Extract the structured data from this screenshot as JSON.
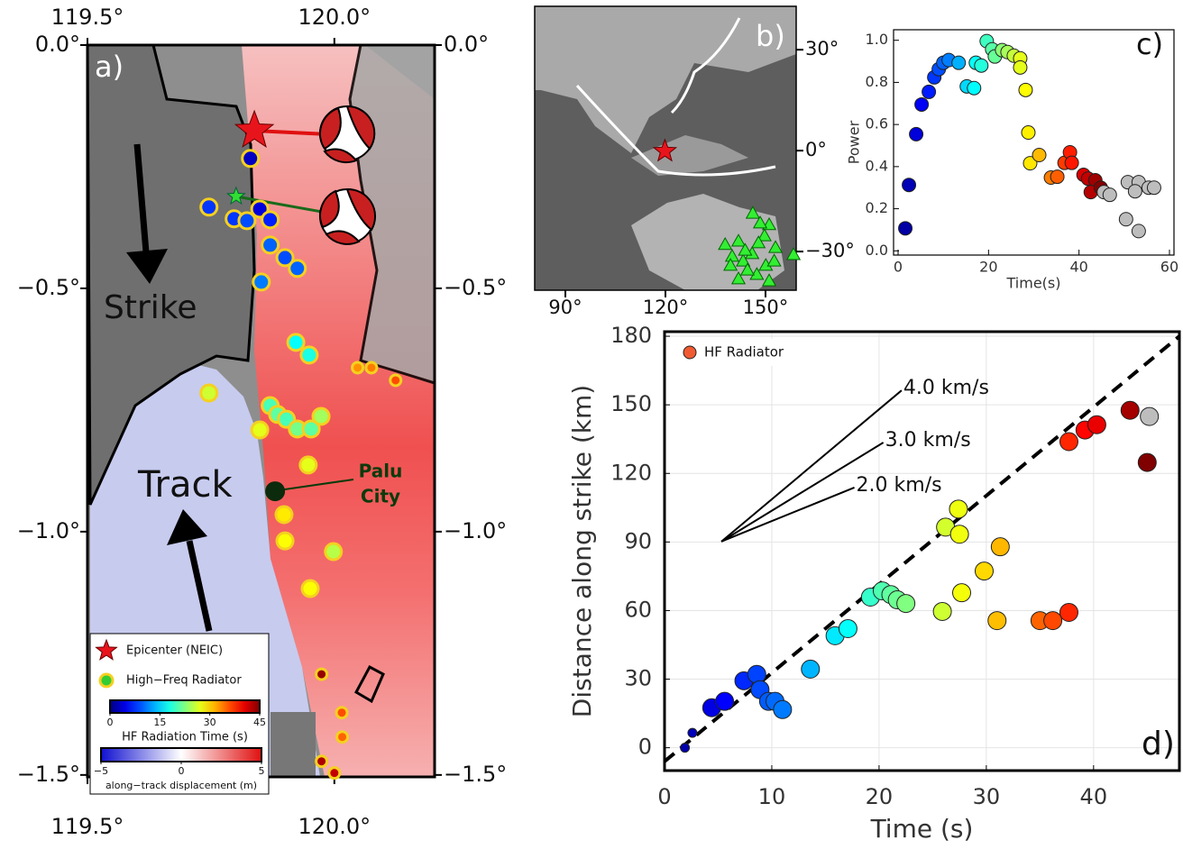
{
  "chart_data": [
    {
      "type": "map",
      "panel_label": "a)",
      "xlim": [
        119.5,
        120.203
      ],
      "ylim": [
        -1.504,
        0
      ],
      "xticks": [
        {
          "value": 119.5,
          "label": "119.5°"
        },
        {
          "value": 120.0,
          "label": "120.0°"
        }
      ],
      "yticks": [
        {
          "value": 0,
          "label": "0.0°"
        },
        {
          "value": -0.5,
          "label": "−0.5°"
        },
        {
          "value": -1.0,
          "label": "−1.0°"
        },
        {
          "value": -1.5,
          "label": "−1.5°"
        }
      ],
      "annotations": {
        "strike": "Strike",
        "track": "Track"
      },
      "city": {
        "label": [
          "Palu",
          "City"
        ],
        "x": 119.88,
        "y": -0.917
      },
      "epicenter": {
        "name": "Epicenter (NEIC)",
        "x": 119.838,
        "y": -0.176,
        "color": "#e8141c"
      },
      "second_star": {
        "x": 119.801,
        "y": -0.311,
        "color": "#33dd33"
      },
      "series": [
        {
          "name": "High−Freq Radiator",
          "x": [
            119.83,
            119.746,
            119.797,
            119.823,
            119.849,
            119.87,
            119.87,
            119.9,
            119.925,
            119.852,
            119.922,
            119.949,
            119.746,
            119.87,
            119.885,
            119.903,
            119.925,
            119.953,
            119.973,
            119.849,
            119.947,
            119.898,
            119.9,
            119.998,
            119.951,
            120.047,
            120.075,
            120.124,
            119.974,
            120.015,
            120.016,
            119.974,
            120.0
          ],
          "y": [
            -0.233,
            -0.333,
            -0.357,
            -0.361,
            -0.337,
            -0.359,
            -0.411,
            -0.437,
            -0.459,
            -0.487,
            -0.611,
            -0.637,
            -0.715,
            -0.741,
            -0.759,
            -0.769,
            -0.789,
            -0.789,
            -0.763,
            -0.791,
            -0.863,
            -0.965,
            -1.019,
            -1.041,
            -1.117,
            -0.663,
            -0.663,
            -0.689,
            -1.293,
            -1.372,
            -1.422,
            -1.472,
            -1.496
          ],
          "values": [
            3,
            8,
            8,
            9,
            4,
            7,
            10,
            9,
            10,
            11,
            17,
            18,
            26,
            20,
            21,
            20,
            22,
            21,
            24,
            27,
            27,
            29,
            28,
            25,
            28,
            33,
            34,
            36,
            44,
            36,
            35,
            43,
            42
          ]
        }
      ],
      "colorbars": [
        {
          "label": "HF Radiation Time (s)",
          "lim": [
            0,
            45
          ],
          "ticks": [
            0,
            15,
            30,
            45
          ]
        },
        {
          "label": "along−track displacement (m)",
          "lim": [
            -5,
            5
          ],
          "ticks": [
            {
              "value": -5,
              "label": "−5"
            },
            0,
            5
          ]
        }
      ]
    },
    {
      "type": "map",
      "panel_label": "b)",
      "xlim": [
        80.8,
        159.2
      ],
      "ylim": [
        -41.5,
        42.9
      ],
      "xticks": [
        {
          "value": 90,
          "label": "90°"
        },
        {
          "value": 120,
          "label": "120°"
        },
        {
          "value": 150,
          "label": "150°"
        }
      ],
      "yticks": [
        {
          "value": 30,
          "label": "30°"
        },
        {
          "value": 0,
          "label": "0°"
        },
        {
          "value": -30,
          "label": "−30°"
        }
      ],
      "epicenter": {
        "x": 119.84,
        "y": -0.18,
        "color": "#e8141c"
      },
      "stations": {
        "color": "#33ee33",
        "x": [
          146.2,
          151.1,
          149.7,
          153.0,
          141.9,
          137.9,
          140.0,
          143.3,
          146.0,
          150.1,
          147.4,
          144.6,
          141.9,
          151.1,
          147.9,
          152.6,
          158.4,
          143.9,
          148.4,
          139.5
        ],
        "y": [
          -18.8,
          -22.2,
          -25.5,
          -29.0,
          -27.1,
          -28.1,
          -31.6,
          -33.0,
          -30.8,
          -34.3,
          -37.0,
          -35.7,
          -38.3,
          -38.9,
          -27.6,
          -33.0,
          -31.1,
          -29.8,
          -21.7,
          -34.3
        ]
      }
    },
    {
      "type": "scatter",
      "panel_label": "c)",
      "xlabel": "Time(s)",
      "ylabel": "Power",
      "xlim": [
        -1,
        61
      ],
      "ylim": [
        -0.02,
        1.05
      ],
      "xticks": [
        0,
        20,
        40,
        60
      ],
      "yticks": [
        {
          "value": 0,
          "label": "0.0"
        },
        0.2,
        0.4,
        0.6,
        0.8,
        {
          "value": 1,
          "label": "1.0"
        }
      ],
      "series": [
        {
          "x": [
            1.6,
            2.4,
            4.0,
            5.2,
            6.8,
            8.0,
            9.0,
            10.0,
            11.2,
            13.4,
            17.2,
            15.2,
            16.8,
            18.4,
            19.6,
            20.8,
            21.4,
            23.0,
            24.2,
            25.6,
            27.0,
            27.0,
            28.2,
            28.8,
            29.2,
            31.2,
            33.8,
            35.2,
            36.8,
            38.0,
            38.4,
            41.0,
            42.0,
            43.6,
            42.6,
            44.8,
            45.5,
            46.8,
            50.8,
            53.2,
            55.4,
            52.4,
            56.6,
            50.4,
            53.2
          ],
          "values": [
            0.107,
            0.313,
            0.554,
            0.695,
            0.755,
            0.824,
            0.863,
            0.893,
            0.906,
            0.893,
            0.893,
            0.781,
            0.773,
            0.88,
            0.996,
            0.957,
            0.923,
            0.953,
            0.944,
            0.927,
            0.914,
            0.871,
            0.764,
            0.562,
            0.416,
            0.455,
            0.348,
            0.352,
            0.418,
            0.468,
            0.418,
            0.361,
            0.343,
            0.335,
            0.279,
            0.3,
            0.279,
            0.266,
            0.326,
            0.326,
            0.3,
            0.283,
            0.3,
            0.15,
            0.094
          ]
        }
      ]
    },
    {
      "type": "scatter",
      "panel_label": "d)",
      "xlabel": "Time (s)",
      "ylabel": "Distance along strike (km)",
      "grid": true,
      "xlim": [
        0,
        48
      ],
      "ylim": [
        -10,
        182
      ],
      "xticks": [
        0,
        10,
        20,
        30,
        40
      ],
      "yticks": [
        0,
        30,
        60,
        90,
        120,
        150,
        180
      ],
      "series": [
        {
          "name": "HF Radiator",
          "color": "#f05a32",
          "x": [
            1.9,
            2.6,
            4.4,
            5.6,
            7.4,
            8.6,
            8.9,
            9.7,
            10.3,
            11.0,
            13.6,
            15.9,
            17.1,
            19.2,
            20.3,
            21.1,
            21.7,
            22.5,
            25.9,
            26.2,
            27.4,
            27.5,
            27.7,
            29.8,
            31.0,
            31.3,
            35.0,
            36.2,
            37.7,
            37.7,
            39.2,
            40.3,
            43.4,
            45.2,
            45.0
          ],
          "values": [
            0,
            6.5,
            17.5,
            20.3,
            29.3,
            32.1,
            25.4,
            20.3,
            20.3,
            16.7,
            34.4,
            49,
            52.1,
            65.9,
            68.6,
            67,
            64.7,
            63.1,
            59.6,
            96.5,
            104.4,
            93.4,
            67.8,
            77.3,
            55.6,
            87.9,
            55.6,
            55.6,
            59.2,
            133.9,
            139,
            141.3,
            147.6,
            144.9,
            124.8
          ]
        }
      ],
      "fit_line": {
        "x": [
          0,
          48
        ],
        "y": [
          -6,
          180
        ]
      },
      "reference_lines": [
        {
          "label": "4.0 km/s",
          "x": [
            5.3,
            22.1
          ],
          "y": [
            90.2,
            156.3
          ]
        },
        {
          "label": "3.0 km/s",
          "x": [
            5.3,
            20.4
          ],
          "y": [
            90.2,
            133.5
          ]
        },
        {
          "label": "2.0 km/s",
          "x": [
            5.3,
            17.7
          ],
          "y": [
            90.2,
            113.8
          ]
        }
      ]
    }
  ]
}
